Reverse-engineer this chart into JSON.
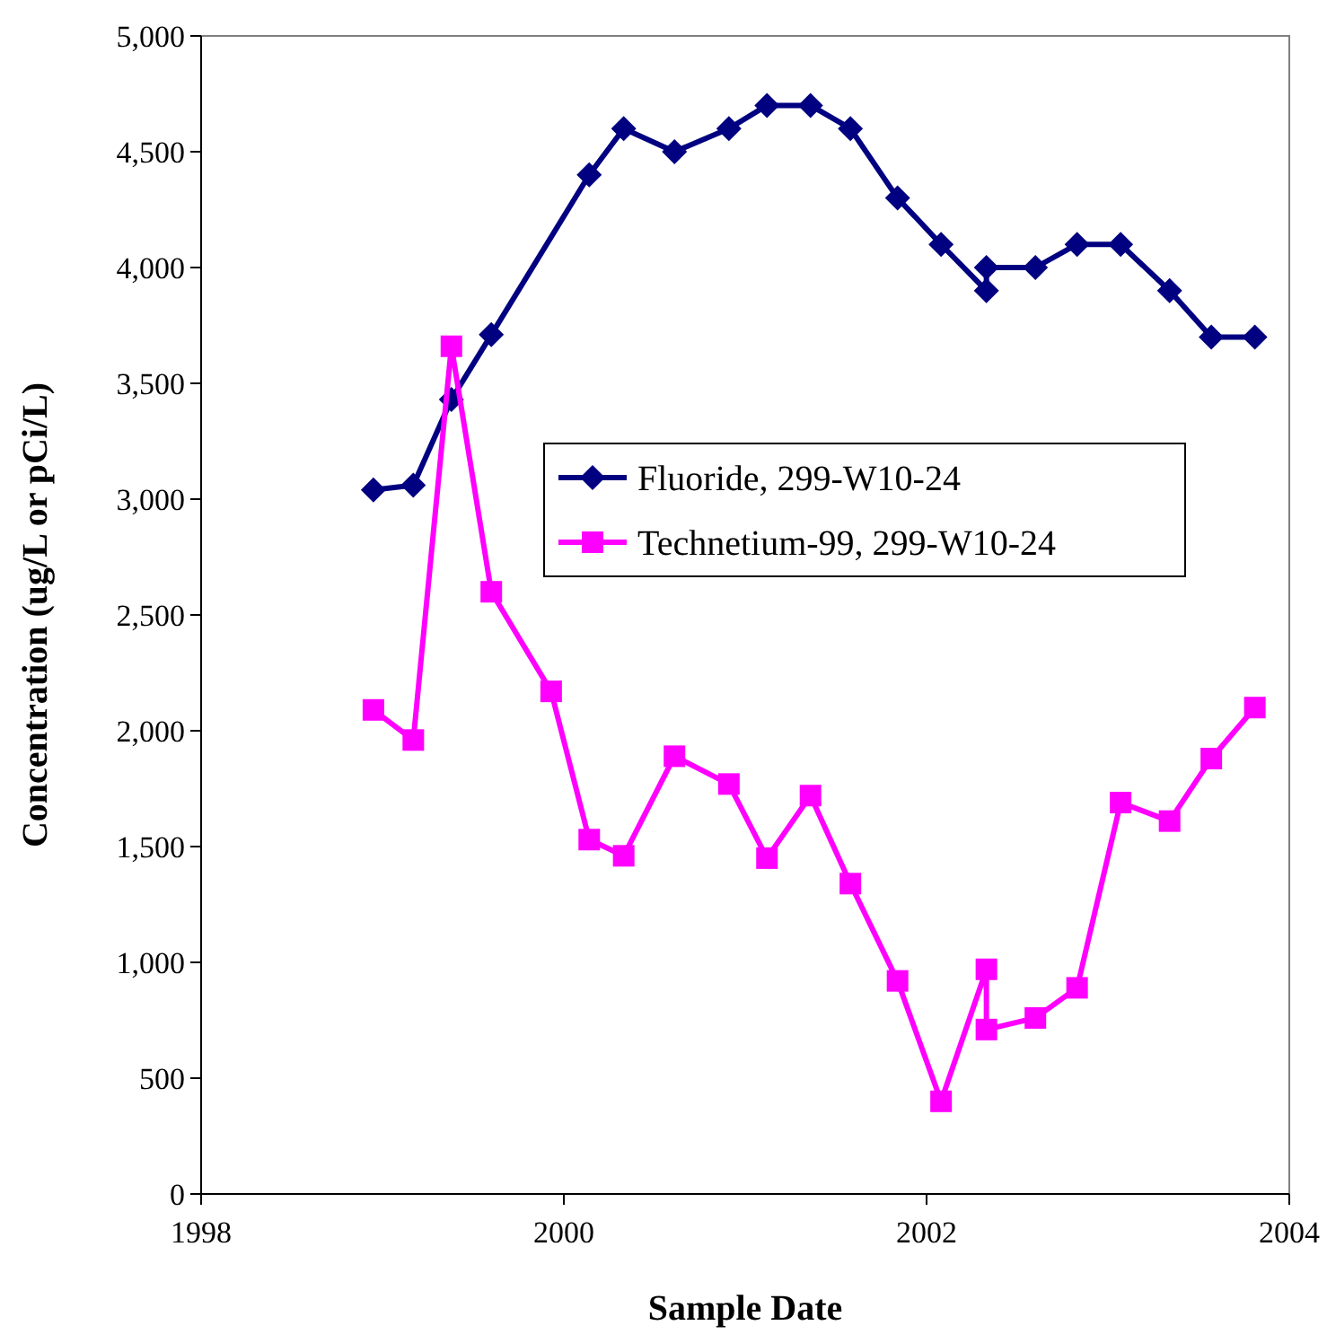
{
  "chart_data": {
    "type": "line",
    "xlabel": "Sample Date",
    "ylabel": "Concentration (ug/L or pCi/L)",
    "xlim": [
      1998,
      2004
    ],
    "xticks": [
      1998,
      2000,
      2002,
      2004
    ],
    "ylim": [
      0,
      5000
    ],
    "yticks": [
      0,
      500,
      {
        "value": 1000,
        "label": "1,000"
      },
      {
        "value": 1500,
        "label": "1,500"
      },
      {
        "value": 2000,
        "label": "2,000"
      },
      {
        "value": 2500,
        "label": "2,500"
      },
      {
        "value": 3000,
        "label": "3,000"
      },
      {
        "value": 3500,
        "label": "3,500"
      },
      {
        "value": 4000,
        "label": "4,000"
      },
      {
        "value": 4500,
        "label": "4,500"
      },
      {
        "value": 5000,
        "label": "5,000"
      }
    ],
    "grid": false,
    "legend": "center",
    "line_style": "solid",
    "series": [
      {
        "name": "Fluoride, 299-W10-24",
        "color": "#000080",
        "marker": "diamond",
        "x": [
          1998.95,
          1999.17,
          1999.38,
          1999.6,
          2000.14,
          2000.33,
          2000.61,
          2000.91,
          2001.12,
          2001.36,
          2001.58,
          2001.84,
          2002.08,
          2002.33,
          2002.33,
          2002.6,
          2002.83,
          2003.07,
          2003.34,
          2003.57,
          2003.81
        ],
        "values": [
          3040,
          3060,
          3430,
          3710,
          4400,
          4600,
          4500,
          4600,
          4700,
          4700,
          4600,
          4300,
          4100,
          3900,
          4000,
          4000,
          4100,
          4100,
          3900,
          3700,
          3700
        ]
      },
      {
        "name": "Technetium-99, 299-W10-24",
        "color": "#ff00ff",
        "marker": "square",
        "x": [
          1998.95,
          1999.17,
          1999.38,
          1999.6,
          1999.93,
          2000.14,
          2000.33,
          2000.61,
          2000.91,
          2001.12,
          2001.36,
          2001.58,
          2001.84,
          2002.08,
          2002.33,
          2002.33,
          2002.6,
          2002.83,
          2003.07,
          2003.34,
          2003.57,
          2003.81
        ],
        "values": [
          2090,
          1960,
          3660,
          2600,
          2170,
          1530,
          1460,
          1890,
          1770,
          1450,
          1720,
          1340,
          920,
          400,
          970,
          710,
          760,
          890,
          1690,
          1610,
          1880,
          2100
        ]
      }
    ]
  }
}
